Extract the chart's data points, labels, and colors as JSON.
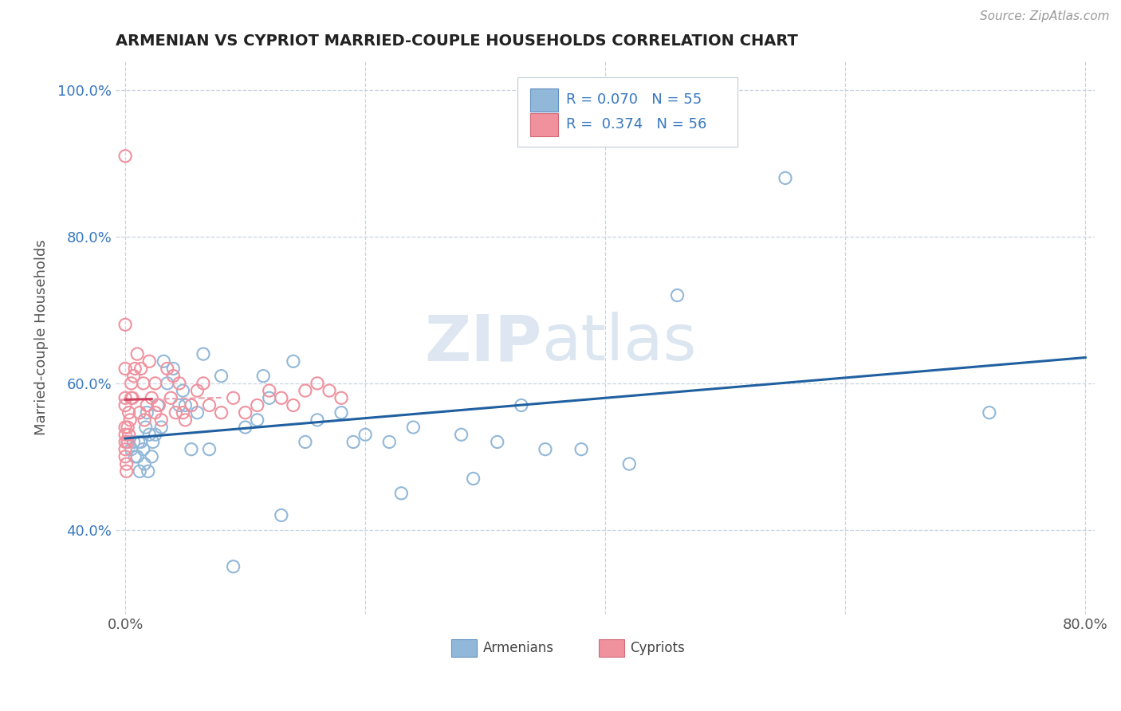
{
  "title": "ARMENIAN VS CYPRIOT MARRIED-COUPLE HOUSEHOLDS CORRELATION CHART",
  "source": "Source: ZipAtlas.com",
  "ylabel": "Married-couple Households",
  "xlim": [
    -0.008,
    0.808
  ],
  "ylim": [
    0.285,
    1.04
  ],
  "xticks": [
    0.0,
    0.2,
    0.4,
    0.6,
    0.8
  ],
  "xticklabels": [
    "0.0%",
    "",
    "",
    "",
    "80.0%"
  ],
  "yticks": [
    0.4,
    0.6,
    0.8,
    1.0
  ],
  "yticklabels": [
    "40.0%",
    "60.0%",
    "80.0%",
    "100.0%"
  ],
  "armenian_color": "#92b8d9",
  "cypriot_color": "#f0919e",
  "trend_armenian": "#2060a0",
  "trend_cypriot": "#d04060",
  "trend_cypriot_dashed": "#e8a0b0",
  "grid_color": "#c8d4e0",
  "background_color": "#ffffff",
  "armenian_scatter_x": [
    0.002,
    0.005,
    0.007,
    0.008,
    0.01,
    0.011,
    0.012,
    0.013,
    0.015,
    0.016,
    0.017,
    0.018,
    0.019,
    0.02,
    0.022,
    0.023,
    0.025,
    0.027,
    0.03,
    0.032,
    0.035,
    0.04,
    0.045,
    0.048,
    0.05,
    0.055,
    0.06,
    0.065,
    0.07,
    0.08,
    0.09,
    0.1,
    0.11,
    0.115,
    0.12,
    0.13,
    0.14,
    0.15,
    0.16,
    0.18,
    0.19,
    0.2,
    0.22,
    0.23,
    0.24,
    0.28,
    0.29,
    0.31,
    0.33,
    0.35,
    0.38,
    0.42,
    0.46,
    0.55,
    0.72
  ],
  "armenian_scatter_y": [
    0.52,
    0.51,
    0.52,
    0.5,
    0.5,
    0.52,
    0.48,
    0.52,
    0.51,
    0.49,
    0.54,
    0.56,
    0.48,
    0.53,
    0.5,
    0.52,
    0.53,
    0.57,
    0.54,
    0.63,
    0.6,
    0.62,
    0.57,
    0.59,
    0.57,
    0.51,
    0.56,
    0.64,
    0.51,
    0.61,
    0.35,
    0.54,
    0.55,
    0.61,
    0.58,
    0.42,
    0.63,
    0.52,
    0.55,
    0.56,
    0.52,
    0.53,
    0.52,
    0.45,
    0.54,
    0.53,
    0.47,
    0.52,
    0.57,
    0.51,
    0.51,
    0.49,
    0.72,
    0.88,
    0.56
  ],
  "cypriot_scatter_x": [
    0.0,
    0.0,
    0.0,
    0.0,
    0.0,
    0.0,
    0.0,
    0.0,
    0.0,
    0.0,
    0.001,
    0.001,
    0.002,
    0.002,
    0.003,
    0.003,
    0.004,
    0.005,
    0.005,
    0.006,
    0.007,
    0.008,
    0.01,
    0.012,
    0.013,
    0.015,
    0.016,
    0.018,
    0.02,
    0.022,
    0.025,
    0.025,
    0.028,
    0.03,
    0.035,
    0.038,
    0.04,
    0.042,
    0.045,
    0.048,
    0.05,
    0.055,
    0.06,
    0.065,
    0.07,
    0.08,
    0.09,
    0.1,
    0.11,
    0.12,
    0.13,
    0.14,
    0.15,
    0.16,
    0.17,
    0.18
  ],
  "cypriot_scatter_y": [
    0.91,
    0.68,
    0.62,
    0.58,
    0.57,
    0.54,
    0.53,
    0.52,
    0.51,
    0.5,
    0.49,
    0.48,
    0.52,
    0.54,
    0.53,
    0.56,
    0.55,
    0.6,
    0.58,
    0.58,
    0.61,
    0.62,
    0.64,
    0.56,
    0.62,
    0.6,
    0.55,
    0.57,
    0.63,
    0.58,
    0.6,
    0.56,
    0.57,
    0.55,
    0.62,
    0.58,
    0.61,
    0.56,
    0.6,
    0.56,
    0.55,
    0.57,
    0.59,
    0.6,
    0.57,
    0.56,
    0.58,
    0.56,
    0.57,
    0.59,
    0.58,
    0.57,
    0.59,
    0.6,
    0.59,
    0.58
  ]
}
